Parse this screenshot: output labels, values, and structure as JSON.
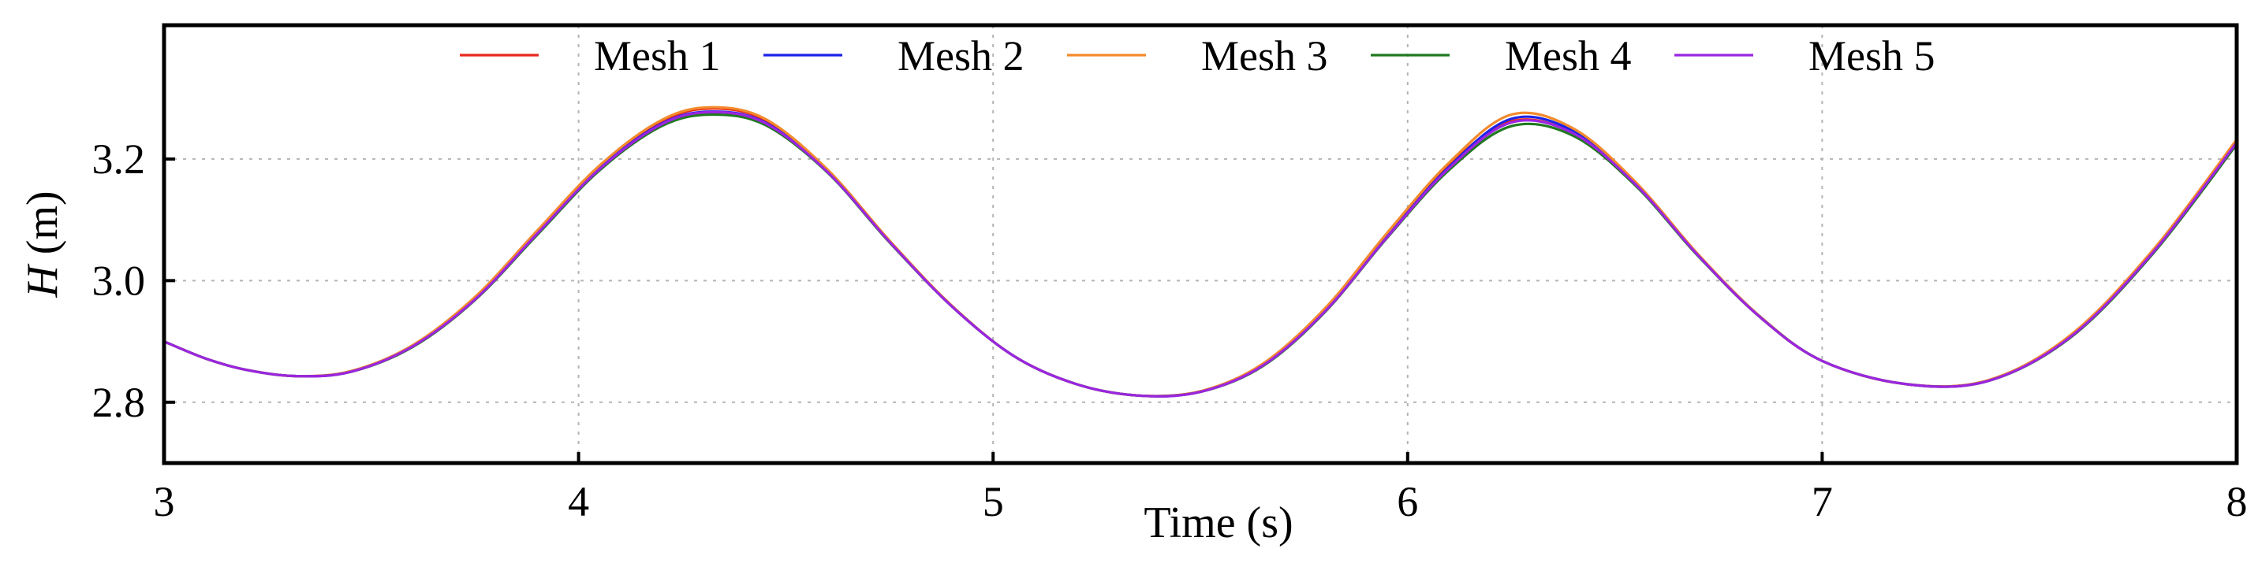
{
  "chart_data": {
    "type": "line",
    "title": "",
    "xlabel": "Time (s)",
    "ylabel_italic": "H",
    "ylabel_unit": " (m)",
    "xlim": [
      3,
      8
    ],
    "ylim": [
      2.7,
      3.42
    ],
    "xticks": [
      3,
      4,
      5,
      6,
      7,
      8
    ],
    "yticks": [
      2.8,
      3.0,
      3.2
    ],
    "ytick_labels": [
      "2.8",
      "3.0",
      "3.2"
    ],
    "grid": true,
    "legend_position": "top",
    "x": [
      3.0,
      3.1,
      3.2,
      3.32,
      3.45,
      3.6,
      3.75,
      3.9,
      4.05,
      4.2,
      4.32,
      4.45,
      4.6,
      4.75,
      4.9,
      5.05,
      5.2,
      5.35,
      5.5,
      5.65,
      5.8,
      5.95,
      6.1,
      6.25,
      6.4,
      6.55,
      6.7,
      6.85,
      7.0,
      7.2,
      7.4,
      7.6,
      7.8,
      8.0
    ],
    "series": [
      {
        "name": "Mesh 1",
        "color": "#e8281e",
        "values": [
          2.9,
          2.872,
          2.853,
          2.843,
          2.851,
          2.893,
          2.972,
          3.08,
          3.187,
          3.262,
          3.283,
          3.264,
          3.182,
          3.065,
          2.959,
          2.876,
          2.83,
          2.811,
          2.818,
          2.862,
          2.952,
          3.075,
          3.19,
          3.262,
          3.242,
          3.158,
          3.042,
          2.94,
          2.868,
          2.83,
          2.836,
          2.91,
          3.05,
          3.23
        ]
      },
      {
        "name": "Mesh 2",
        "color": "#1c23e8",
        "values": [
          2.9,
          2.872,
          2.853,
          2.843,
          2.85,
          2.892,
          2.97,
          3.078,
          3.184,
          3.258,
          3.278,
          3.26,
          3.18,
          3.064,
          2.958,
          2.876,
          2.83,
          2.811,
          2.817,
          2.86,
          2.95,
          3.072,
          3.187,
          3.266,
          3.246,
          3.16,
          3.043,
          2.941,
          2.868,
          2.83,
          2.835,
          2.908,
          3.048,
          3.226
        ]
      },
      {
        "name": "Mesh 3",
        "color": "#f38a2c",
        "values": [
          2.9,
          2.872,
          2.853,
          2.843,
          2.851,
          2.894,
          2.973,
          3.082,
          3.189,
          3.264,
          3.285,
          3.266,
          3.183,
          3.066,
          2.959,
          2.876,
          2.83,
          2.811,
          2.818,
          2.863,
          2.954,
          3.078,
          3.194,
          3.273,
          3.25,
          3.162,
          3.044,
          2.941,
          2.868,
          2.83,
          2.836,
          2.911,
          3.052,
          3.232
        ]
      },
      {
        "name": "Mesh 4",
        "color": "#1f7a1f",
        "values": [
          2.9,
          2.872,
          2.853,
          2.843,
          2.85,
          2.891,
          2.968,
          3.075,
          3.181,
          3.254,
          3.273,
          3.256,
          3.178,
          3.063,
          2.958,
          2.876,
          2.83,
          2.811,
          2.817,
          2.859,
          2.948,
          3.07,
          3.182,
          3.254,
          3.238,
          3.156,
          3.041,
          2.94,
          2.868,
          2.83,
          2.835,
          2.907,
          3.046,
          3.224
        ]
      },
      {
        "name": "Mesh 5",
        "color": "#9b25e0",
        "values": [
          2.9,
          2.872,
          2.853,
          2.843,
          2.85,
          2.892,
          2.969,
          3.077,
          3.183,
          3.257,
          3.277,
          3.259,
          3.179,
          3.064,
          2.958,
          2.876,
          2.83,
          2.811,
          2.817,
          2.86,
          2.949,
          3.071,
          3.185,
          3.26,
          3.242,
          3.158,
          3.042,
          2.94,
          2.868,
          2.83,
          2.835,
          2.908,
          3.048,
          3.227
        ]
      }
    ]
  }
}
